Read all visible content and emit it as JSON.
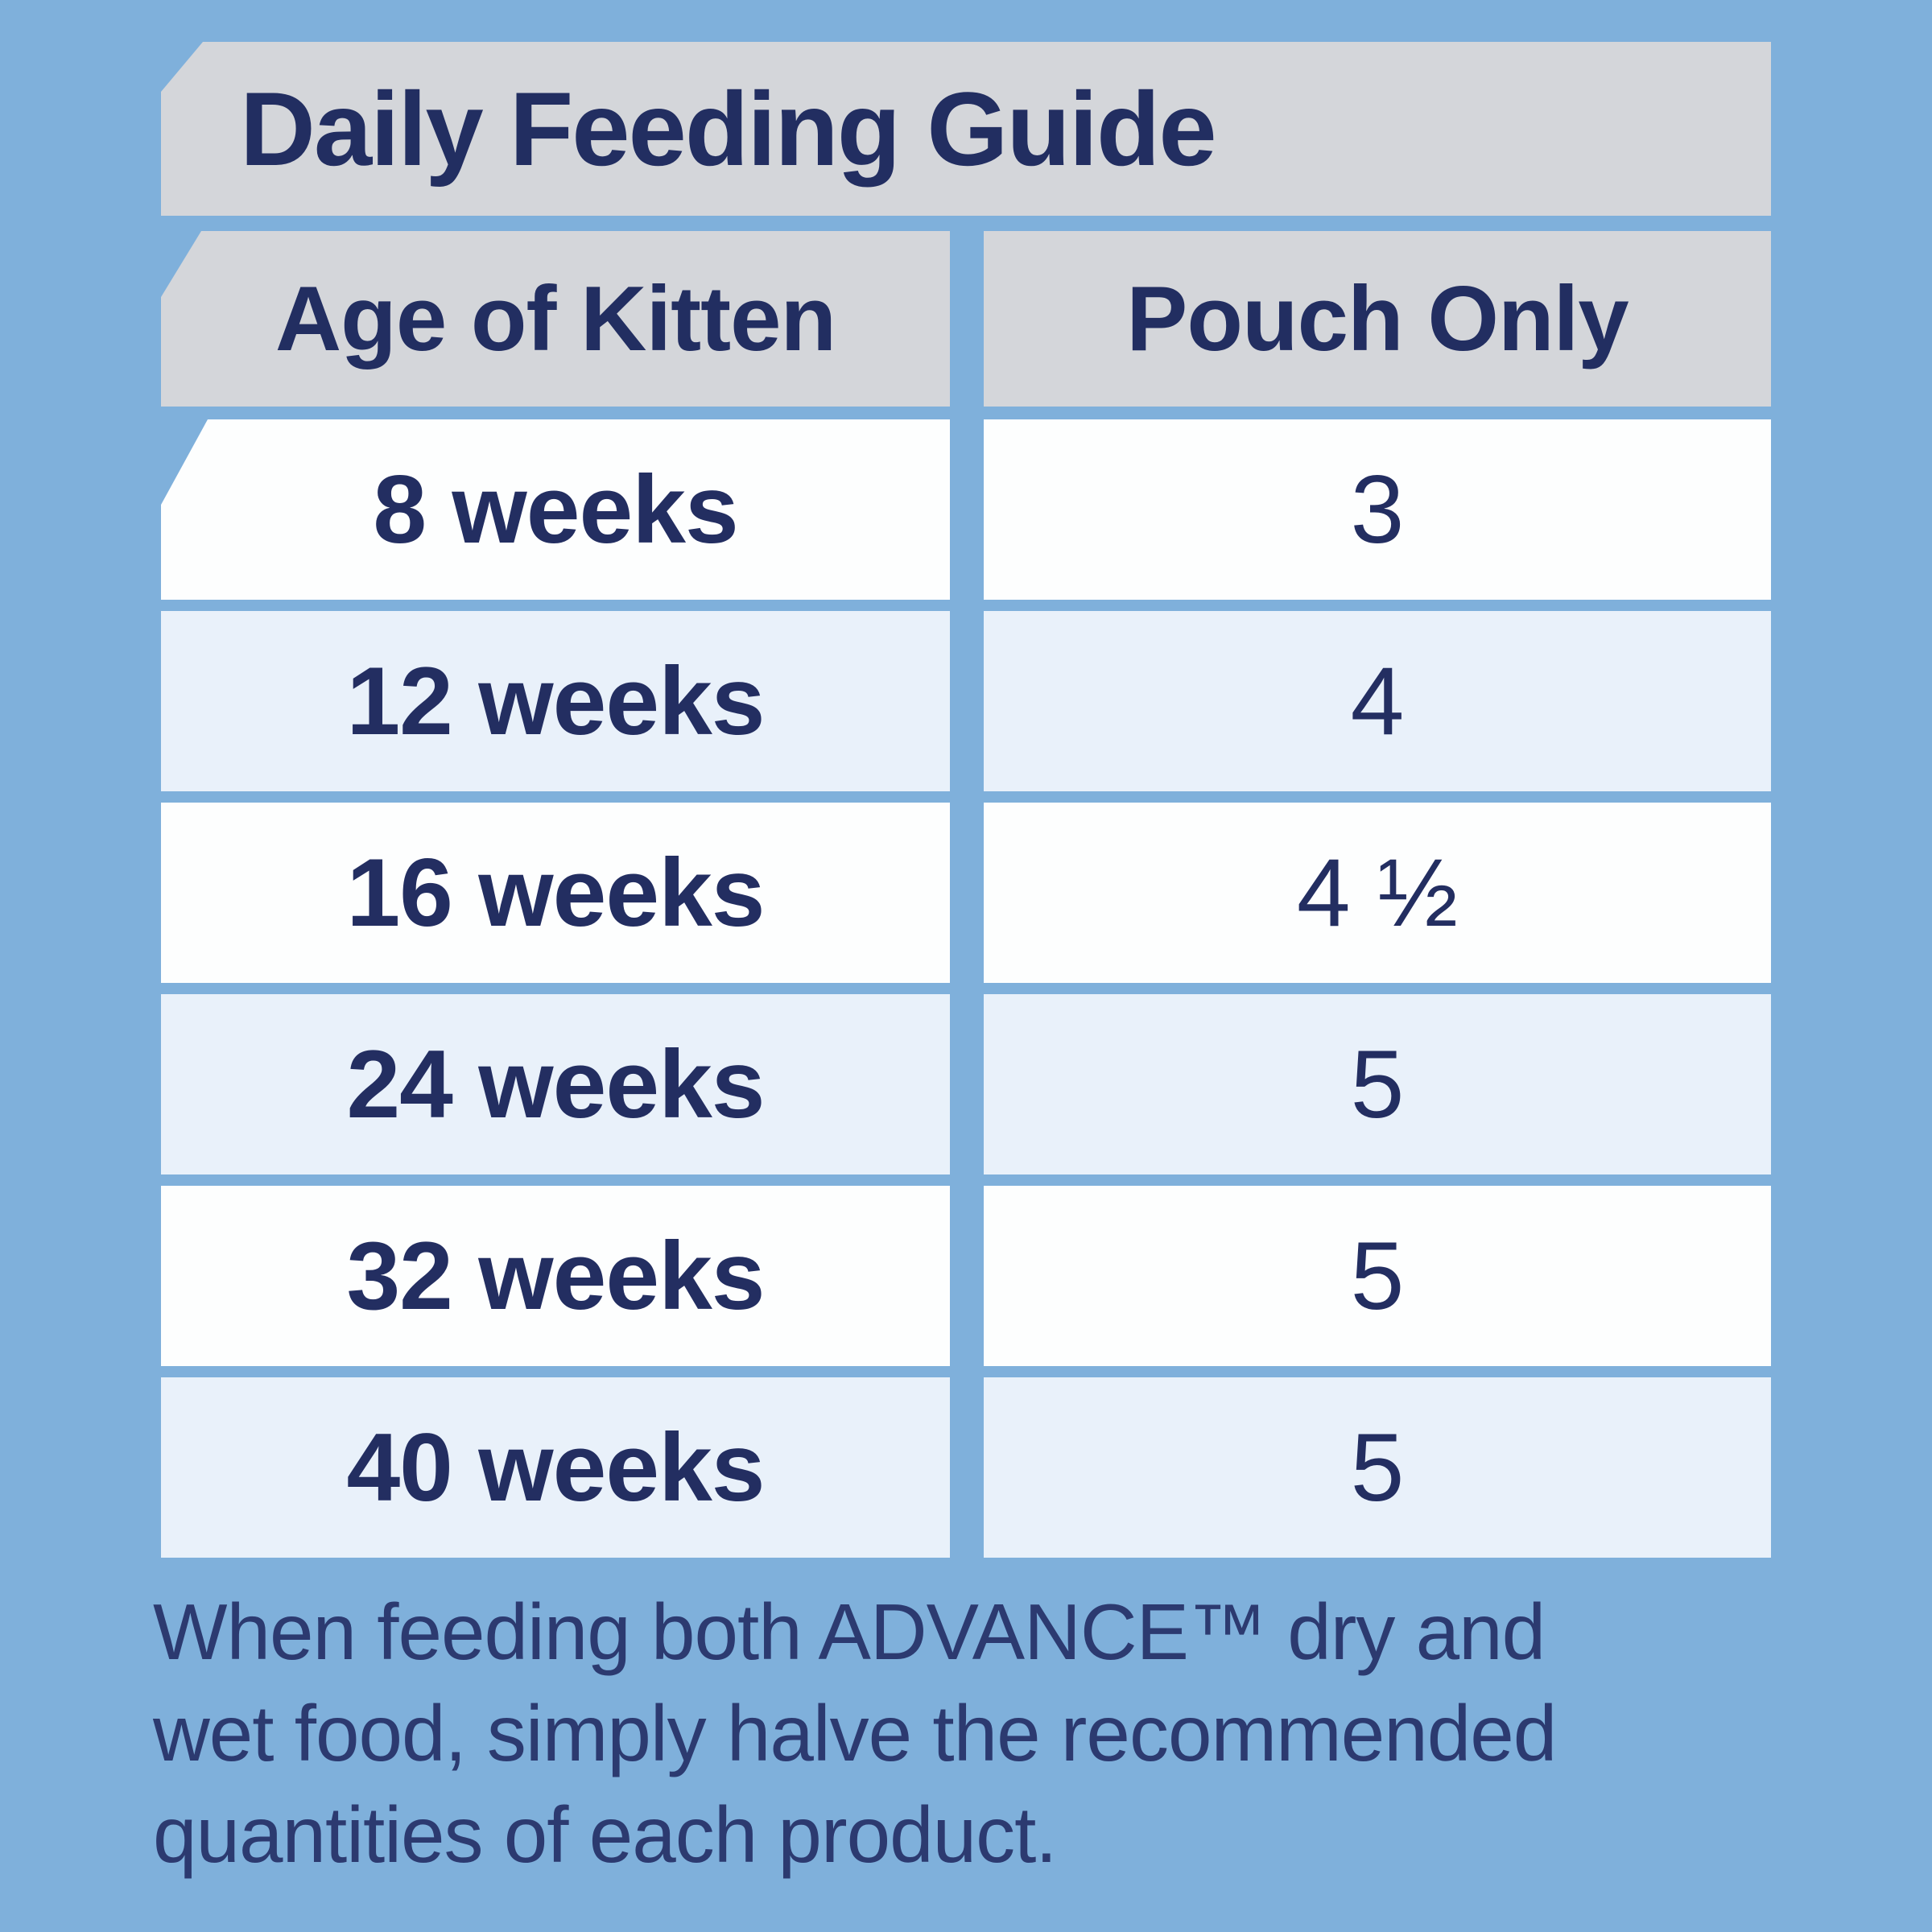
{
  "title": "Daily Feeding Guide",
  "table": {
    "columns": [
      {
        "label": "Age of Kitten"
      },
      {
        "label": "Pouch Only"
      }
    ],
    "rows": [
      {
        "age": "8 weeks",
        "pouch": "3"
      },
      {
        "age": "12 weeks",
        "pouch": "4"
      },
      {
        "age": "16 weeks",
        "pouch": "4 ½"
      },
      {
        "age": "24 weeks",
        "pouch": "5"
      },
      {
        "age": "32 weeks",
        "pouch": "5"
      },
      {
        "age": "40 weeks",
        "pouch": "5"
      }
    ]
  },
  "footer": {
    "lines": [
      "When feeding both ADVANCE™ dry and",
      "wet food, simply halve the recommended",
      "quantities of each product."
    ]
  },
  "colors": {
    "background_blue": "#7fb0db",
    "panel_gray": "#d4d6da",
    "row_white": "#fdfefe",
    "row_tint_blue": "#e9f1fa",
    "text_navy": "#232e61",
    "footer_navy": "#2c3a70"
  }
}
